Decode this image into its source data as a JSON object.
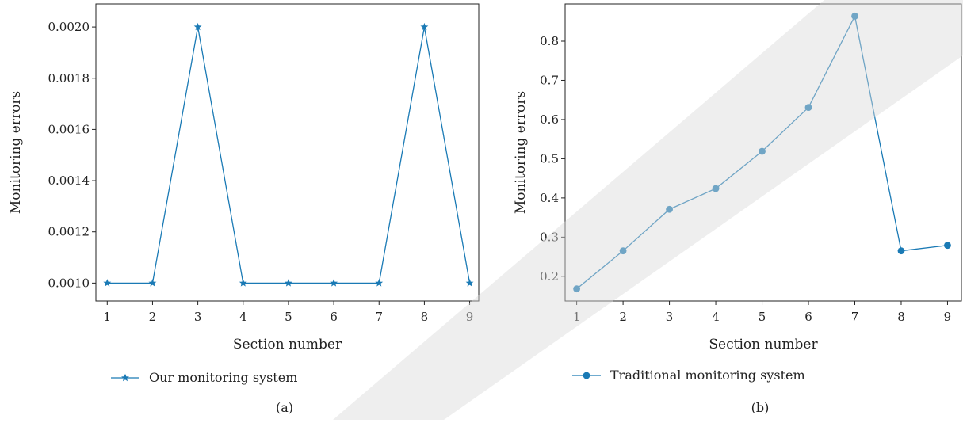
{
  "colors": {
    "series": "#1a7ab5",
    "axis": "#222222",
    "watermark": "#d9d9d9"
  },
  "chart_data": [
    {
      "type": "line",
      "panel_label": "(a)",
      "xlabel": "Section number",
      "ylabel": "Monitoring errors",
      "xlim": [
        0.75,
        9.2
      ],
      "ylim": [
        0.00093,
        0.00209
      ],
      "x_ticks": [
        1,
        2,
        3,
        4,
        5,
        6,
        7,
        8,
        9
      ],
      "y_ticks": [
        "0.0010",
        "0.0012",
        "0.0014",
        "0.0016",
        "0.0018",
        "0.0020"
      ],
      "grid": false,
      "legend_position": "bottom-left",
      "series": [
        {
          "name": "Our monitoring system",
          "marker": "star",
          "x": [
            1,
            2,
            3,
            4,
            5,
            6,
            7,
            8,
            9
          ],
          "y": [
            0.001,
            0.001,
            0.002,
            0.001,
            0.001,
            0.001,
            0.001,
            0.002,
            0.001
          ]
        }
      ]
    },
    {
      "type": "line",
      "panel_label": "(b)",
      "xlabel": "Section number",
      "ylabel": "Monitoring errors",
      "xlim": [
        0.75,
        9.3
      ],
      "ylim": [
        0.137,
        0.895
      ],
      "x_ticks": [
        1,
        2,
        3,
        4,
        5,
        6,
        7,
        8,
        9
      ],
      "y_ticks": [
        "0.2",
        "0.3",
        "0.4",
        "0.5",
        "0.6",
        "0.7",
        "0.8"
      ],
      "grid": false,
      "legend_position": "bottom-left",
      "series": [
        {
          "name": "Traditional monitoring system",
          "marker": "circle",
          "x": [
            1,
            2,
            3,
            4,
            5,
            6,
            7,
            8,
            9
          ],
          "y": [
            0.168,
            0.265,
            0.371,
            0.424,
            0.519,
            0.631,
            0.864,
            0.265,
            0.279
          ]
        }
      ]
    }
  ]
}
